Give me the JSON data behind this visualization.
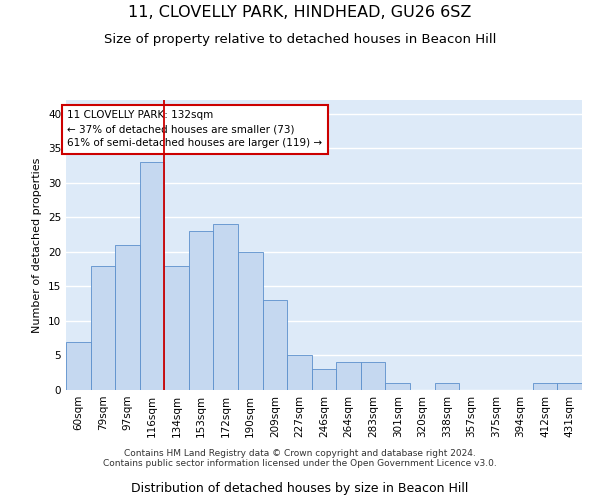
{
  "title1": "11, CLOVELLY PARK, HINDHEAD, GU26 6SZ",
  "title2": "Size of property relative to detached houses in Beacon Hill",
  "xlabel": "Distribution of detached houses by size in Beacon Hill",
  "ylabel": "Number of detached properties",
  "categories": [
    "60sqm",
    "79sqm",
    "97sqm",
    "116sqm",
    "134sqm",
    "153sqm",
    "172sqm",
    "190sqm",
    "209sqm",
    "227sqm",
    "246sqm",
    "264sqm",
    "283sqm",
    "301sqm",
    "320sqm",
    "338sqm",
    "357sqm",
    "375sqm",
    "394sqm",
    "412sqm",
    "431sqm"
  ],
  "values": [
    7,
    18,
    21,
    33,
    18,
    23,
    24,
    20,
    13,
    5,
    3,
    4,
    4,
    1,
    0,
    1,
    0,
    0,
    0,
    1,
    1
  ],
  "bar_color": "#c5d8f0",
  "bar_edge_color": "#5b8fcc",
  "background_color": "#ddeaf8",
  "grid_color": "#ffffff",
  "annotation_line1": "11 CLOVELLY PARK: 132sqm",
  "annotation_line2": "← 37% of detached houses are smaller (73)",
  "annotation_line3": "61% of semi-detached houses are larger (119) →",
  "annotation_box_color": "#ffffff",
  "annotation_box_edge_color": "#cc0000",
  "vline_color": "#cc0000",
  "vline_x": 3.5,
  "ylim": [
    0,
    42
  ],
  "yticks": [
    0,
    5,
    10,
    15,
    20,
    25,
    30,
    35,
    40
  ],
  "footnote1": "Contains HM Land Registry data © Crown copyright and database right 2024.",
  "footnote2": "Contains public sector information licensed under the Open Government Licence v3.0.",
  "title1_fontsize": 11.5,
  "title2_fontsize": 9.5,
  "xlabel_fontsize": 9,
  "ylabel_fontsize": 8,
  "tick_fontsize": 7.5,
  "annotation_fontsize": 7.5,
  "footnote_fontsize": 6.5
}
